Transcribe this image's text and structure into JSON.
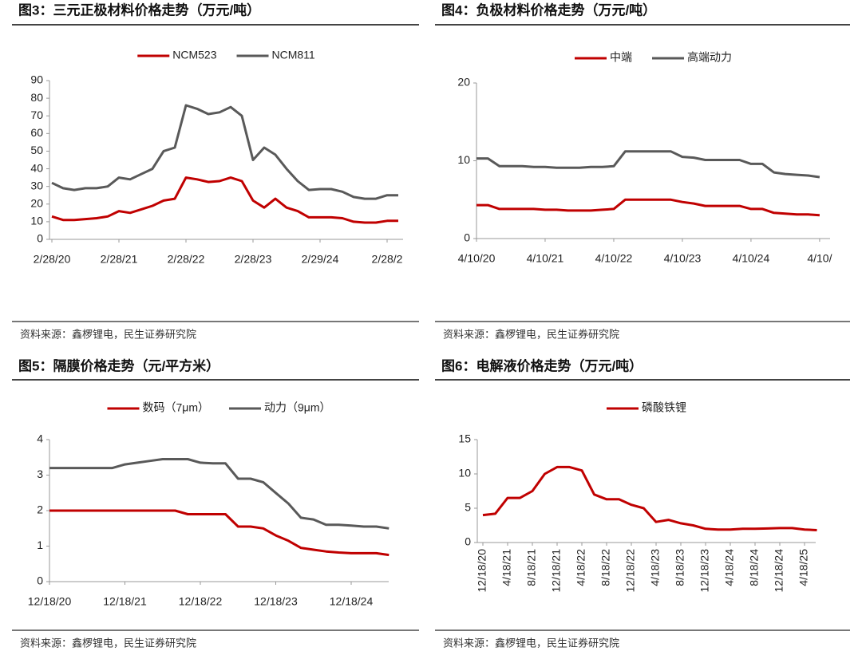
{
  "chart_data": [
    {
      "type": "line",
      "title": "图3：三元正极材料价格走势（万元/吨）",
      "source": "资料来源：鑫椤锂电，民生证券研究院",
      "categories": [
        "2/28/20",
        null,
        null,
        null,
        null,
        null,
        "2/28/21",
        null,
        null,
        null,
        null,
        null,
        "2/28/22",
        null,
        null,
        null,
        null,
        null,
        "2/28/23",
        null,
        null,
        null,
        null,
        null,
        "2/29/24",
        null,
        null,
        null,
        null,
        null,
        "2/28/2",
        null
      ],
      "series": [
        {
          "name": "NCM523",
          "color": "#c00000",
          "values": [
            13,
            11,
            11,
            11.5,
            12,
            13,
            16,
            15,
            17,
            19,
            22,
            23,
            35,
            34,
            32.5,
            33,
            35,
            33,
            22,
            18,
            23,
            18,
            16,
            12.5,
            12.5,
            12.5,
            12,
            10,
            9.5,
            9.5,
            10.5,
            10.5
          ]
        },
        {
          "name": "NCM811",
          "color": "#595959",
          "values": [
            32,
            29,
            28,
            29,
            29,
            30,
            35,
            34,
            37,
            40,
            50,
            52,
            76,
            74,
            71,
            72,
            75,
            70,
            45,
            52,
            48,
            40,
            33,
            28,
            28.5,
            28.5,
            27,
            24,
            23,
            23,
            25,
            25
          ]
        }
      ],
      "ylim": [
        0,
        90
      ],
      "yticks": [
        0,
        10,
        20,
        30,
        40,
        50,
        60,
        70,
        80,
        90
      ],
      "legend": "top"
    },
    {
      "type": "line",
      "title": "图4：负极材料价格走势（万元/吨）",
      "source": "资料来源：鑫椤锂电，民生证券研究院",
      "categories": [
        "4/10/20",
        null,
        null,
        null,
        null,
        null,
        "4/10/21",
        null,
        null,
        null,
        null,
        null,
        "4/10/22",
        null,
        null,
        null,
        null,
        null,
        "4/10/23",
        null,
        null,
        null,
        null,
        null,
        "4/10/24",
        null,
        null,
        null,
        null,
        null,
        "4/10/"
      ],
      "series": [
        {
          "name": "中端",
          "color": "#c00000",
          "values": [
            4.3,
            4.3,
            3.8,
            3.8,
            3.8,
            3.8,
            3.7,
            3.7,
            3.6,
            3.6,
            3.6,
            3.7,
            3.8,
            5,
            5,
            5,
            5,
            5,
            4.7,
            4.5,
            4.2,
            4.2,
            4.2,
            4.2,
            3.8,
            3.8,
            3.3,
            3.2,
            3.1,
            3.1,
            3.0
          ]
        },
        {
          "name": "高端动力",
          "color": "#595959",
          "values": [
            10.3,
            10.3,
            9.3,
            9.3,
            9.3,
            9.2,
            9.2,
            9.1,
            9.1,
            9.1,
            9.2,
            9.2,
            9.3,
            11.2,
            11.2,
            11.2,
            11.2,
            11.2,
            10.5,
            10.4,
            10.1,
            10.1,
            10.1,
            10.1,
            9.6,
            9.6,
            8.5,
            8.3,
            8.2,
            8.1,
            7.9
          ]
        }
      ],
      "ylim": [
        0,
        20
      ],
      "yticks": [
        0,
        10,
        20
      ],
      "legend": "top"
    },
    {
      "type": "line",
      "title": "图5：隔膜价格走势（元/平方米）",
      "source": "资料来源：鑫椤锂电，民生证券研究院",
      "categories": [
        "12/18/20",
        null,
        null,
        null,
        null,
        null,
        "12/18/21",
        null,
        null,
        null,
        null,
        null,
        "12/18/22",
        null,
        null,
        null,
        null,
        null,
        "12/18/23",
        null,
        null,
        null,
        null,
        null,
        "12/18/24",
        null,
        null,
        null
      ],
      "series": [
        {
          "name": "数码（7μm）",
          "color": "#c00000",
          "values": [
            2,
            2,
            2,
            2,
            2,
            2,
            2,
            2,
            2,
            2,
            2,
            1.9,
            1.9,
            1.9,
            1.9,
            1.55,
            1.55,
            1.5,
            1.3,
            1.15,
            0.95,
            0.9,
            0.85,
            0.82,
            0.8,
            0.8,
            0.8,
            0.75
          ]
        },
        {
          "name": "动力（9μm）",
          "color": "#595959",
          "values": [
            3.2,
            3.2,
            3.2,
            3.2,
            3.2,
            3.2,
            3.3,
            3.35,
            3.4,
            3.45,
            3.45,
            3.45,
            3.35,
            3.33,
            3.33,
            2.9,
            2.9,
            2.8,
            2.5,
            2.2,
            1.8,
            1.75,
            1.6,
            1.6,
            1.58,
            1.55,
            1.55,
            1.5
          ]
        }
      ],
      "ylim": [
        0,
        4
      ],
      "yticks": [
        0,
        1,
        2,
        3,
        4
      ],
      "legend": "top"
    },
    {
      "type": "line",
      "title": "图6：电解液价格走势（万元/吨）",
      "source": "资料来源：鑫椤锂电，民生证券研究院",
      "categories": [
        "12/18/20",
        null,
        "4/18/21",
        null,
        "8/18/21",
        null,
        "12/18/21",
        null,
        "4/18/22",
        null,
        "8/18/22",
        null,
        "12/18/22",
        null,
        "4/18/23",
        null,
        "8/18/23",
        null,
        "12/18/23",
        null,
        "4/18/24",
        null,
        "8/18/24",
        null,
        "12/18/24",
        null,
        "4/18/25",
        null
      ],
      "series": [
        {
          "name": "磷酸铁锂",
          "color": "#c00000",
          "values": [
            4,
            4.2,
            6.5,
            6.5,
            7.5,
            10,
            11,
            11,
            10.5,
            7,
            6.3,
            6.3,
            5.5,
            5,
            3,
            3.3,
            2.8,
            2.5,
            2,
            1.9,
            1.9,
            2,
            2,
            2.05,
            2.1,
            2.1,
            1.9,
            1.8
          ]
        }
      ],
      "ylim": [
        0,
        15
      ],
      "yticks": [
        0,
        5,
        10,
        15
      ],
      "legend": "top",
      "rotate_labels": true
    }
  ]
}
